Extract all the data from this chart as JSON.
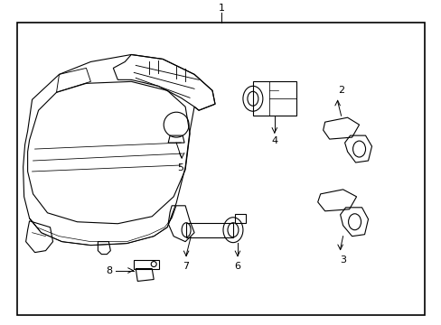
{
  "background_color": "#ffffff",
  "line_color": "#000000",
  "fig_width": 4.89,
  "fig_height": 3.6,
  "dpi": 100,
  "label_1": "1",
  "label_2": "2",
  "label_3": "3",
  "label_4": "4",
  "label_5": "5",
  "label_6": "6",
  "label_7": "7",
  "label_8": "8",
  "font_size_labels": 8
}
